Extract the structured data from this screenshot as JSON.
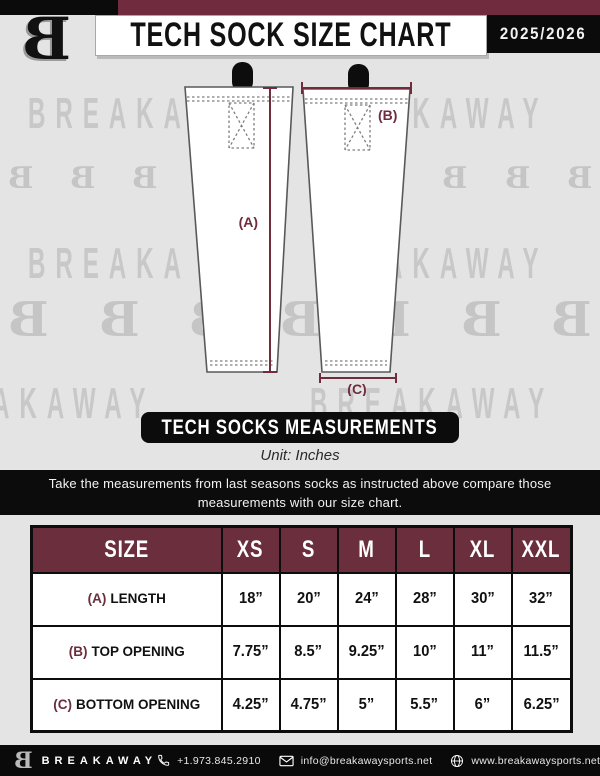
{
  "header": {
    "title": "TECH SOCK SIZE CHART",
    "season": "2025/2026",
    "brand_monogram": "B"
  },
  "watermark": {
    "monogram": "B",
    "segments": {
      "r1a": "BREAKA",
      "r1b": "AKAWAY",
      "r2a": "BREAKA",
      "r2b": "AKAWAY",
      "r3a": "AKAWAY",
      "r3b": "BREAKAWAY"
    }
  },
  "diagram": {
    "label_a": "(A)",
    "label_b": "(B)",
    "label_c": "(C)",
    "accent_color": "#702b3d"
  },
  "measurements": {
    "banner": "TECH SOCKS MEASUREMENTS",
    "unit": "Unit: Inches",
    "instruction_line1": "Take the measurements from last seasons socks as instructed above compare those",
    "instruction_line2": "measurements  with our size chart."
  },
  "size_table": {
    "header": [
      "SIZE",
      "XS",
      "S",
      "M",
      "L",
      "XL",
      "XXL"
    ],
    "rows": [
      {
        "key": "(A)",
        "label": "LENGTH",
        "values": [
          "18”",
          "20”",
          "24”",
          "28”",
          "30”",
          "32”"
        ]
      },
      {
        "key": "(B)",
        "label": "TOP OPENING",
        "values": [
          "7.75”",
          "8.5”",
          "9.25”",
          "10”",
          "11”",
          "11.5”"
        ]
      },
      {
        "key": "(C)",
        "label": "BOTTOM OPENING",
        "values": [
          "4.25”",
          "4.75”",
          "5”",
          "5.5”",
          "6”",
          "6.25”"
        ]
      }
    ]
  },
  "footer": {
    "brand": "BREAKAWAY",
    "phone": "+1.973.845.2910",
    "email": "info@breakawaysports.net",
    "website": "www.breakawaysports.net"
  },
  "colors": {
    "maroon_bar": "#702c3e",
    "table_header": "#6b2e3d",
    "black": "#0b0b0b",
    "background": "#e4e4e4",
    "watermark_gray": "#c8c8c8"
  }
}
